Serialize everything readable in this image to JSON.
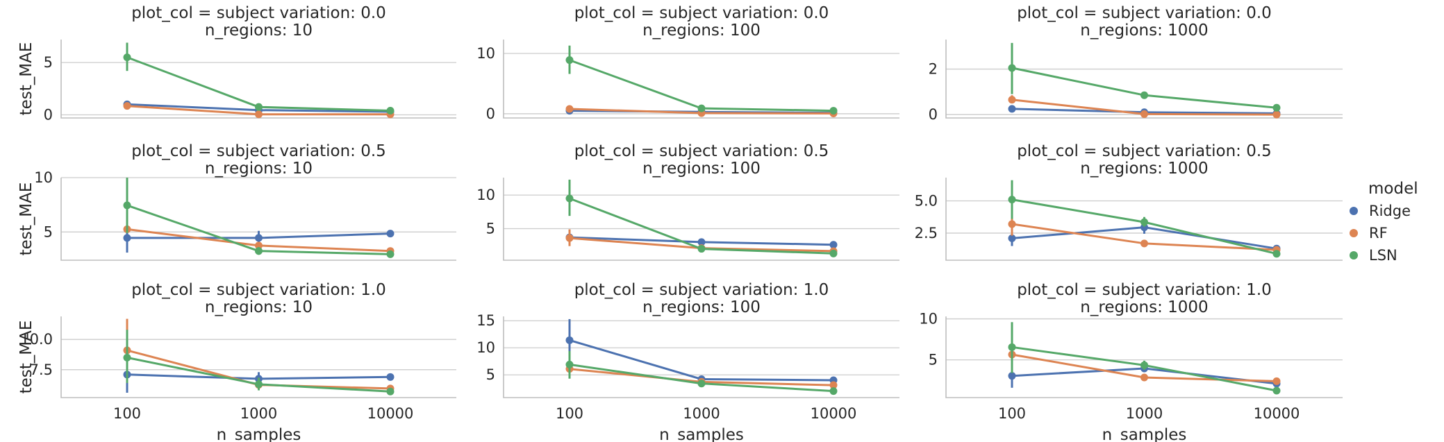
{
  "chart_data": {
    "type": "line",
    "x_categories": [
      "100",
      "1000",
      "10000"
    ],
    "xlabel": "n_samples",
    "ylabel": "test_MAE",
    "legend": {
      "title": "model",
      "placement": "right",
      "entries": [
        {
          "name": "Ridge",
          "color": "#4c72b0"
        },
        {
          "name": "RF",
          "color": "#dd8452"
        },
        {
          "name": "LSN",
          "color": "#55a868"
        }
      ]
    },
    "grid": "horizontal",
    "panels": [
      {
        "title_line1": "plot_col = subject variation: 0.0",
        "title_line2": "n_regions: 10",
        "ylim": [
          -0.3,
          7.2
        ],
        "yticks": [
          0,
          5
        ],
        "ytick_labels": [
          "0",
          "5"
        ],
        "series": [
          {
            "name": "Ridge",
            "values": [
              1.0,
              0.45,
              0.3
            ],
            "err": [
              [
                0.7,
                1.3
              ],
              null,
              null
            ]
          },
          {
            "name": "RF",
            "values": [
              0.85,
              0.05,
              0.05
            ],
            "err": [
              null,
              null,
              null
            ]
          },
          {
            "name": "LSN",
            "values": [
              5.5,
              0.75,
              0.4
            ],
            "err": [
              [
                4.2,
                6.9
              ],
              null,
              null
            ]
          }
        ]
      },
      {
        "title_line1": "plot_col = subject variation: 0.0",
        "title_line2": "n_regions: 100",
        "ylim": [
          -0.7,
          12.3
        ],
        "yticks": [
          0,
          10
        ],
        "ytick_labels": [
          "0",
          "10"
        ],
        "series": [
          {
            "name": "Ridge",
            "values": [
              0.5,
              0.3,
              0.15
            ],
            "err": [
              null,
              null,
              null
            ]
          },
          {
            "name": "RF",
            "values": [
              0.8,
              0.1,
              0.05
            ],
            "err": [
              null,
              null,
              null
            ]
          },
          {
            "name": "LSN",
            "values": [
              8.9,
              0.9,
              0.5
            ],
            "err": [
              [
                6.6,
                11.3
              ],
              null,
              null
            ]
          }
        ]
      },
      {
        "title_line1": "plot_col = subject variation: 0.0",
        "title_line2": "n_regions: 1000",
        "ylim": [
          -0.15,
          3.3
        ],
        "yticks": [
          0,
          2
        ],
        "ytick_labels": [
          "0",
          "2"
        ],
        "series": [
          {
            "name": "Ridge",
            "values": [
              0.25,
              0.1,
              0.05
            ],
            "err": [
              null,
              null,
              null
            ]
          },
          {
            "name": "RF",
            "values": [
              0.65,
              0.02,
              0.0
            ],
            "err": [
              [
                0.5,
                0.85
              ],
              null,
              null
            ]
          },
          {
            "name": "LSN",
            "values": [
              2.05,
              0.85,
              0.3
            ],
            "err": [
              [
                0.9,
                3.15
              ],
              null,
              null
            ]
          }
        ]
      },
      {
        "title_line1": "plot_col = subject variation: 0.5",
        "title_line2": "n_regions: 10",
        "ylim": [
          2.4,
          10.0
        ],
        "yticks": [
          5,
          10
        ],
        "ytick_labels": [
          "5",
          "10"
        ],
        "series": [
          {
            "name": "Ridge",
            "values": [
              4.45,
              4.45,
              4.85
            ],
            "err": [
              [
                3.1,
                5.8
              ],
              [
                3.9,
                5.1
              ],
              null
            ]
          },
          {
            "name": "RF",
            "values": [
              5.25,
              3.75,
              3.25
            ],
            "err": [
              null,
              null,
              null
            ]
          },
          {
            "name": "LSN",
            "values": [
              7.45,
              3.25,
              2.95
            ],
            "err": [
              [
                4.9,
                10.0
              ],
              [
                2.9,
                3.6
              ],
              null
            ]
          }
        ]
      },
      {
        "title_line1": "plot_col = subject variation: 0.5",
        "title_line2": "n_regions: 100",
        "ylim": [
          0.3,
          12.6
        ],
        "yticks": [
          5,
          10
        ],
        "ytick_labels": [
          "5",
          "10"
        ],
        "series": [
          {
            "name": "Ridge",
            "values": [
              3.7,
              3.0,
              2.6
            ],
            "err": [
              null,
              null,
              null
            ]
          },
          {
            "name": "RF",
            "values": [
              3.6,
              2.1,
              1.65
            ],
            "err": [
              [
                2.4,
                4.9
              ],
              null,
              null
            ]
          },
          {
            "name": "LSN",
            "values": [
              9.5,
              2.0,
              1.3
            ],
            "err": [
              [
                6.9,
                12.3
              ],
              null,
              null
            ]
          }
        ]
      },
      {
        "title_line1": "plot_col = subject variation: 0.5",
        "title_line2": "n_regions: 1000",
        "ylim": [
          0.4,
          6.8
        ],
        "yticks": [
          2.5,
          5.0
        ],
        "ytick_labels": [
          "2.5",
          "5.0"
        ],
        "series": [
          {
            "name": "Ridge",
            "values": [
              2.1,
              2.95,
              1.3
            ],
            "err": [
              [
                1.5,
                2.6
              ],
              [
                2.45,
                3.65
              ],
              null
            ]
          },
          {
            "name": "RF",
            "values": [
              3.2,
              1.7,
              1.2
            ],
            "err": [
              [
                2.3,
                4.1
              ],
              null,
              null
            ]
          },
          {
            "name": "LSN",
            "values": [
              5.1,
              3.35,
              0.9
            ],
            "err": [
              [
                3.6,
                6.6
              ],
              [
                3.0,
                3.75
              ],
              null
            ]
          }
        ]
      },
      {
        "title_line1": "plot_col = subject variation: 1.0",
        "title_line2": "n_regions: 10",
        "ylim": [
          5.2,
          11.9
        ],
        "yticks": [
          7.5,
          10.0
        ],
        "ytick_labels": [
          "7.5",
          "10.0"
        ],
        "series": [
          {
            "name": "Ridge",
            "values": [
              7.1,
              6.75,
              6.9
            ],
            "err": [
              [
                5.6,
                8.5
              ],
              [
                6.3,
                7.3
              ],
              null
            ]
          },
          {
            "name": "RF",
            "values": [
              9.1,
              6.25,
              5.95
            ],
            "err": [
              [
                7.3,
                11.7
              ],
              null,
              null
            ]
          },
          {
            "name": "LSN",
            "values": [
              8.5,
              6.3,
              5.7
            ],
            "err": [
              [
                6.4,
                10.8
              ],
              [
                5.8,
                6.85
              ],
              null
            ]
          }
        ]
      },
      {
        "title_line1": "plot_col = subject variation: 1.0",
        "title_line2": "n_regions: 100",
        "ylim": [
          0.8,
          15.8
        ],
        "yticks": [
          5,
          10,
          15
        ],
        "ytick_labels": [
          "5",
          "10",
          "15"
        ],
        "series": [
          {
            "name": "Ridge",
            "values": [
              11.4,
              4.2,
              4.0
            ],
            "err": [
              [
                7.6,
                15.3
              ],
              null,
              null
            ]
          },
          {
            "name": "RF",
            "values": [
              6.1,
              3.7,
              3.1
            ],
            "err": [
              [
                4.6,
                7.6
              ],
              null,
              null
            ]
          },
          {
            "name": "LSN",
            "values": [
              6.9,
              3.4,
              2.0
            ],
            "err": [
              [
                4.3,
                9.4
              ],
              null,
              null
            ]
          }
        ]
      },
      {
        "title_line1": "plot_col = subject variation: 1.0",
        "title_line2": "n_regions: 1000",
        "ylim": [
          0.4,
          10.3
        ],
        "yticks": [
          5,
          10
        ],
        "ytick_labels": [
          "5",
          "10"
        ],
        "series": [
          {
            "name": "Ridge",
            "values": [
              3.05,
              3.95,
              2.1
            ],
            "err": [
              [
                1.6,
                4.6
              ],
              [
                3.5,
                4.6
              ],
              null
            ]
          },
          {
            "name": "RF",
            "values": [
              5.65,
              2.85,
              2.4
            ],
            "err": [
              [
                3.6,
                7.8
              ],
              null,
              null
            ]
          },
          {
            "name": "LSN",
            "values": [
              6.55,
              4.35,
              1.25
            ],
            "err": [
              [
                3.4,
                9.6
              ],
              [
                3.8,
                4.9
              ],
              null
            ]
          }
        ]
      }
    ]
  }
}
